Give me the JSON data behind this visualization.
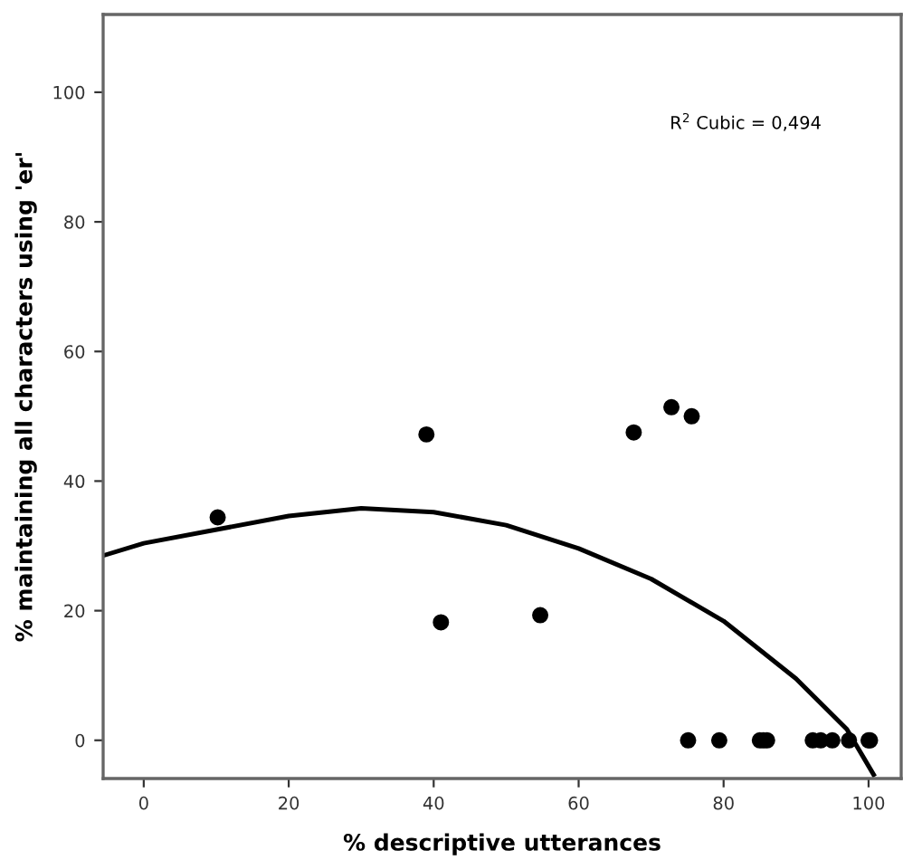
{
  "chart_data": {
    "type": "scatter",
    "xlabel": "% descriptive utterances",
    "ylabel": "% maintaining all characters using 'er'",
    "xlim": [
      -5.6,
      104.5
    ],
    "ylim": [
      -5.9,
      112
    ],
    "xticks": [
      0,
      20,
      40,
      60,
      80,
      100
    ],
    "yticks": [
      0,
      20,
      40,
      60,
      80,
      100
    ],
    "grid": false,
    "legend": false,
    "annotations": [
      "R$^{2}$ Cubic = 0,494"
    ],
    "series": [
      {
        "color": "#000000",
        "marker": "circle",
        "x": [
          10.2,
          39,
          41,
          54.7,
          67.6,
          72.8,
          75.6,
          75.1,
          79.4,
          85,
          85.5,
          86,
          92.3,
          93.4,
          95,
          97.3,
          100,
          100.2
        ],
        "values": [
          34.4,
          47.2,
          18.2,
          19.3,
          47.5,
          51.4,
          50,
          0,
          0,
          0,
          0,
          0,
          0,
          0,
          0,
          0,
          0,
          0
        ]
      },
      {
        "type": "line",
        "color": "#000000",
        "line_style": "solid",
        "x": [
          -5.6,
          0,
          20,
          30,
          40,
          50,
          60,
          70,
          80,
          90,
          97,
          100.7
        ],
        "values": [
          28.5,
          30.4,
          34.6,
          35.8,
          35.2,
          33.2,
          29.6,
          24.9,
          18.4,
          9.5,
          1.7,
          -5.3
        ]
      }
    ]
  }
}
